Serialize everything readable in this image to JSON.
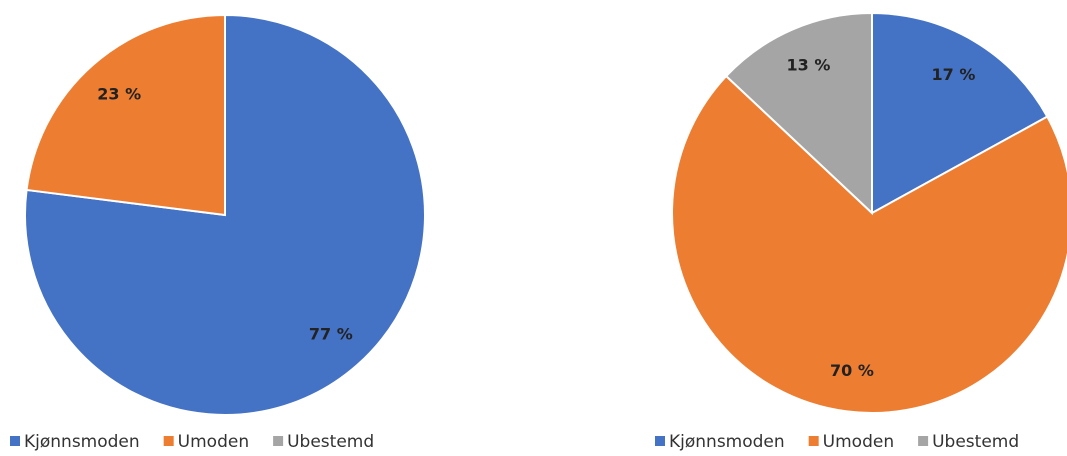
{
  "chart_data": [
    {
      "type": "pie",
      "categories": [
        "Kjønnsmoden",
        "Umoden",
        "Ubestemd"
      ],
      "values": [
        77,
        23,
        0
      ],
      "value_labels": [
        "77 %",
        "23 %",
        null
      ],
      "colors": [
        "#4472c4",
        "#ed7d31",
        "#a5a5a5"
      ]
    },
    {
      "type": "pie",
      "categories": [
        "Kjønnsmoden",
        "Umoden",
        "Ubestemd"
      ],
      "values": [
        17,
        70,
        13
      ],
      "value_labels": [
        "17 %",
        "70 %",
        "13 %"
      ],
      "colors": [
        "#4472c4",
        "#ed7d31",
        "#a5a5a5"
      ]
    }
  ]
}
